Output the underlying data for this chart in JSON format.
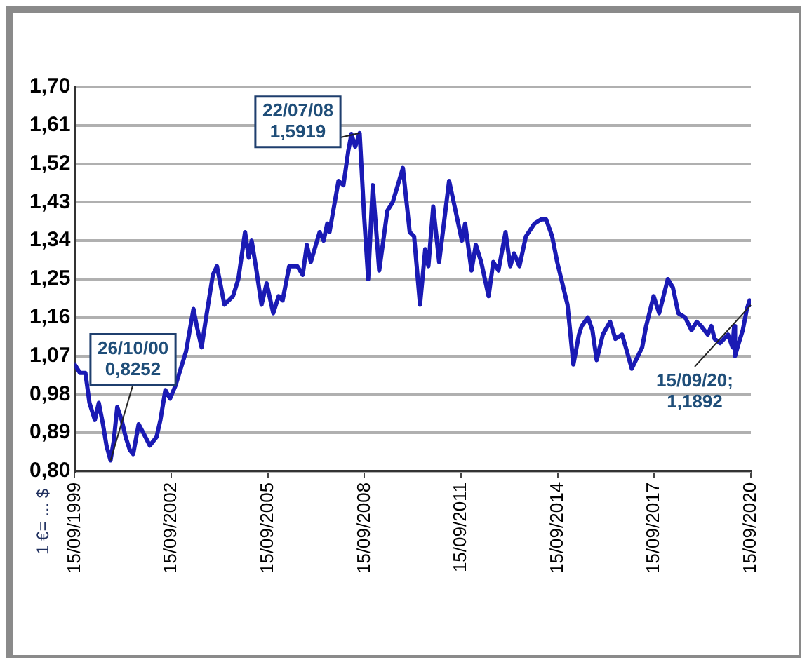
{
  "chart_data": {
    "type": "line",
    "ylabel": "1 €= ... $",
    "x": [
      "1999-09-15",
      "1999-11-15",
      "2000-01-15",
      "2000-03-01",
      "2000-05-01",
      "2000-06-15",
      "2000-08-01",
      "2000-09-10",
      "2000-10-26",
      "2000-12-01",
      "2001-01-10",
      "2001-03-01",
      "2001-04-15",
      "2001-06-01",
      "2001-07-10",
      "2001-09-10",
      "2001-11-01",
      "2002-01-15",
      "2002-04-01",
      "2002-05-15",
      "2002-07-10",
      "2002-09-01",
      "2002-11-01",
      "2003-01-15",
      "2003-03-01",
      "2003-05-25",
      "2003-07-01",
      "2003-08-25",
      "2003-10-15",
      "2003-12-31",
      "2004-02-15",
      "2004-05-10",
      "2004-08-15",
      "2004-10-15",
      "2004-12-30",
      "2005-02-10",
      "2005-03-15",
      "2005-05-01",
      "2005-07-05",
      "2005-09-01",
      "2005-11-15",
      "2006-01-15",
      "2006-03-01",
      "2006-05-15",
      "2006-08-15",
      "2006-10-15",
      "2006-12-01",
      "2007-01-15",
      "2007-04-25",
      "2007-06-10",
      "2007-07-20",
      "2007-08-15",
      "2007-11-25",
      "2008-01-20",
      "2008-03-15",
      "2008-04-20",
      "2008-06-01",
      "2008-07-22",
      "2008-09-10",
      "2008-10-27",
      "2008-12-18",
      "2009-03-01",
      "2009-06-01",
      "2009-08-01",
      "2009-11-25",
      "2010-02-10",
      "2010-04-01",
      "2010-06-07",
      "2010-08-05",
      "2010-09-10",
      "2010-11-04",
      "2011-01-10",
      "2011-05-03",
      "2011-07-15",
      "2011-09-25",
      "2011-11-01",
      "2012-01-12",
      "2012-03-01",
      "2012-05-01",
      "2012-07-24",
      "2012-09-15",
      "2012-11-13",
      "2013-02-01",
      "2013-03-27",
      "2013-05-10",
      "2013-07-09",
      "2013-09-20",
      "2013-12-27",
      "2014-03-13",
      "2014-05-07",
      "2014-07-15",
      "2014-09-10",
      "2014-10-15",
      "2015-01-05",
      "2015-03-13",
      "2015-05-15",
      "2015-06-15",
      "2015-08-24",
      "2015-10-15",
      "2015-12-02",
      "2016-02-10",
      "2016-05-03",
      "2016-07-01",
      "2016-09-15",
      "2016-11-10",
      "2017-01-03",
      "2017-03-15",
      "2017-05-01",
      "2017-06-15",
      "2017-09-08",
      "2017-11-10",
      "2018-02-16",
      "2018-04-15",
      "2018-06-15",
      "2018-09-01",
      "2018-11-12",
      "2019-01-10",
      "2019-03-01",
      "2019-05-15",
      "2019-06-25",
      "2019-08-01",
      "2019-10-01",
      "2019-12-31",
      "2020-02-20",
      "2020-03-09",
      "2020-03-20",
      "2020-05-01",
      "2020-06-15",
      "2020-08-01",
      "2020-09-01",
      "2020-09-15"
    ],
    "series": [
      {
        "color": "#1a1ab4",
        "values": [
          1.05,
          1.03,
          1.03,
          0.96,
          0.92,
          0.96,
          0.91,
          0.86,
          0.8252,
          0.87,
          0.95,
          0.92,
          0.88,
          0.85,
          0.84,
          0.91,
          0.89,
          0.86,
          0.88,
          0.92,
          0.99,
          0.97,
          1.0,
          1.05,
          1.08,
          1.18,
          1.14,
          1.09,
          1.16,
          1.26,
          1.28,
          1.19,
          1.21,
          1.25,
          1.36,
          1.3,
          1.34,
          1.28,
          1.19,
          1.24,
          1.17,
          1.21,
          1.2,
          1.28,
          1.28,
          1.26,
          1.33,
          1.29,
          1.36,
          1.34,
          1.38,
          1.36,
          1.48,
          1.47,
          1.55,
          1.59,
          1.56,
          1.5919,
          1.4,
          1.25,
          1.47,
          1.27,
          1.41,
          1.43,
          1.51,
          1.36,
          1.35,
          1.19,
          1.32,
          1.28,
          1.42,
          1.29,
          1.48,
          1.41,
          1.34,
          1.38,
          1.27,
          1.33,
          1.29,
          1.21,
          1.29,
          1.27,
          1.36,
          1.28,
          1.31,
          1.28,
          1.35,
          1.38,
          1.39,
          1.39,
          1.35,
          1.29,
          1.26,
          1.19,
          1.05,
          1.12,
          1.14,
          1.16,
          1.13,
          1.06,
          1.12,
          1.15,
          1.11,
          1.12,
          1.08,
          1.04,
          1.07,
          1.09,
          1.14,
          1.21,
          1.17,
          1.25,
          1.23,
          1.17,
          1.16,
          1.13,
          1.15,
          1.14,
          1.12,
          1.14,
          1.11,
          1.1,
          1.12,
          1.09,
          1.14,
          1.07,
          1.1,
          1.13,
          1.18,
          1.2,
          1.1892
        ]
      }
    ],
    "ylim": [
      0.8,
      1.7
    ],
    "yticks": [
      {
        "value": 0.8,
        "label": "0,80"
      },
      {
        "value": 0.89,
        "label": "0,89"
      },
      {
        "value": 0.98,
        "label": "0,98"
      },
      {
        "value": 1.07,
        "label": "1,07"
      },
      {
        "value": 1.16,
        "label": "1,16"
      },
      {
        "value": 1.25,
        "label": "1,25"
      },
      {
        "value": 1.34,
        "label": "1,34"
      },
      {
        "value": 1.43,
        "label": "1,43"
      },
      {
        "value": 1.52,
        "label": "1,52"
      },
      {
        "value": 1.61,
        "label": "1,61"
      },
      {
        "value": 1.7,
        "label": "1,70"
      }
    ],
    "xlim": [
      "1999-09-15",
      "2020-09-15"
    ],
    "xticks": [
      {
        "value": "1999-09-15",
        "label": "15/09/1999"
      },
      {
        "value": "2002-09-15",
        "label": "15/09/2002"
      },
      {
        "value": "2005-09-15",
        "label": "15/09/2005"
      },
      {
        "value": "2008-09-15",
        "label": "15/09/2008"
      },
      {
        "value": "2011-09-15",
        "label": "15/09/2011"
      },
      {
        "value": "2014-09-15",
        "label": "15/09/2014"
      },
      {
        "value": "2017-09-15",
        "label": "15/09/2017"
      },
      {
        "value": "2020-09-15",
        "label": "15/09/2020"
      }
    ],
    "annotations": [
      {
        "text": "26/10/00\n0,8252",
        "x": "2000-10-26",
        "y": 0.8252
      },
      {
        "text": "22/07/08\n1,5919",
        "x": "2008-07-22",
        "y": 1.5919
      },
      {
        "text": "15/09/20;\n1,1892",
        "x": "2020-09-15",
        "y": 1.1892
      }
    ],
    "grid": "y",
    "legend": false,
    "marker": "none",
    "line_style": "solid"
  }
}
